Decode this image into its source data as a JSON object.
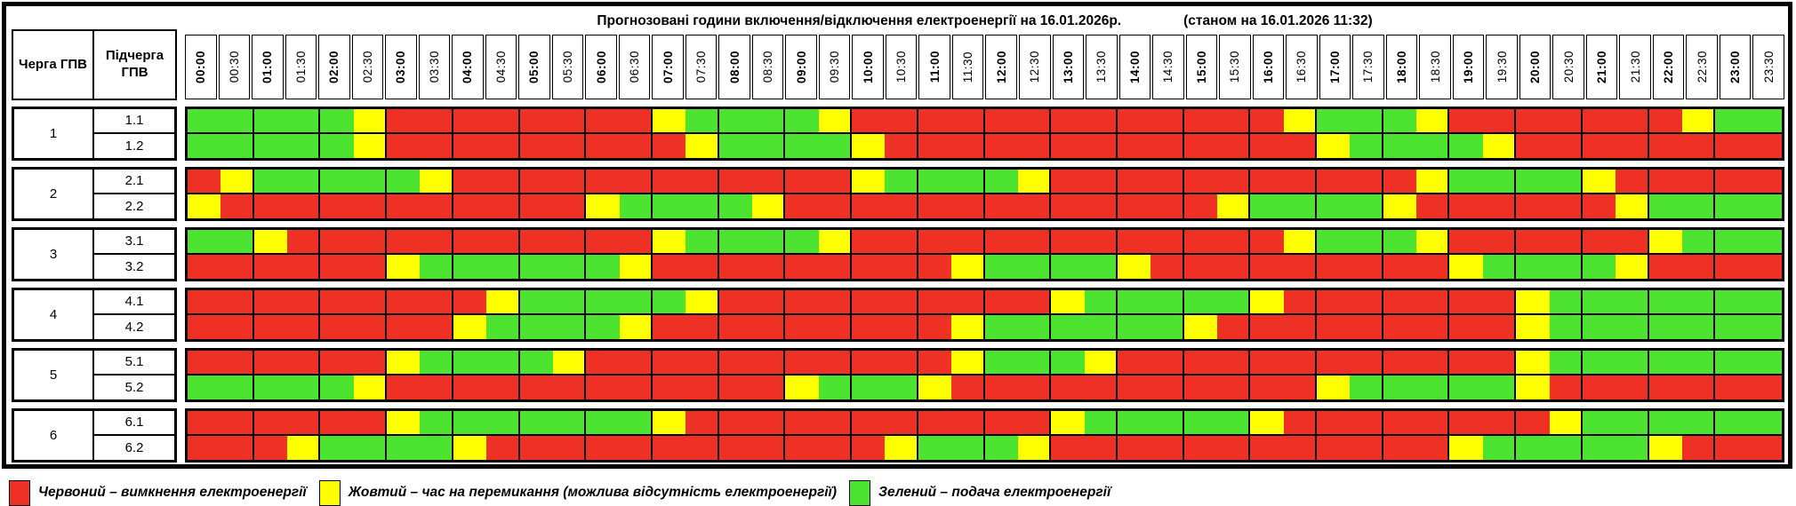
{
  "header": {
    "queue_label": "Черга ГПВ",
    "subqueue_label": "Підчерга ГПВ"
  },
  "chart_data": {
    "type": "heatmap",
    "title": "Прогнозовані години включення/відключення електроенергії на 16.01.2026р.",
    "status": "(станом на 16.01.2026 11:32)",
    "x_labels": [
      "00:00",
      "00:30",
      "01:00",
      "01:30",
      "02:00",
      "02:30",
      "03:00",
      "03:30",
      "04:00",
      "04:30",
      "05:00",
      "05:30",
      "06:00",
      "06:30",
      "07:00",
      "07:30",
      "08:00",
      "08:30",
      "09:00",
      "09:30",
      "10:00",
      "10:30",
      "11:00",
      "11:30",
      "12:00",
      "12:30",
      "13:00",
      "13:30",
      "14:00",
      "14:30",
      "15:00",
      "15:30",
      "16:00",
      "16:30",
      "17:00",
      "17:30",
      "18:00",
      "18:30",
      "19:00",
      "19:30",
      "20:00",
      "20:30",
      "21:00",
      "21:30",
      "22:00",
      "22:30",
      "23:00",
      "23:30"
    ],
    "value_colors": {
      "R": "#ee3124",
      "Y": "#feff00",
      "G": "#4ce431"
    },
    "value_meaning": {
      "R": "відключення",
      "Y": "перемикання",
      "G": "подача"
    },
    "groups": [
      {
        "queue": "1",
        "rows": [
          {
            "label": "1.1",
            "cells": "GGGGGYRRRRRRRRYGGGGYRRRRRRRRRRRRRYGGGYRRRRRRRYGG"
          },
          {
            "label": "1.2",
            "cells": "GGGGGYRRRRRRRRRYGGGGYRRRRRRRRRRRRRYGGGGYRRRRRRRR"
          }
        ]
      },
      {
        "queue": "2",
        "rows": [
          {
            "label": "2.1",
            "cells": "RYGGGGGYRRRRRRRRRRRRYGGGGYRRRRRRRRRRRYGGGGYRRRRR"
          },
          {
            "label": "2.2",
            "cells": "YRRRRRRRRRRRYGGGGYRRRRRRRRRRRRRYGGGGYRRRRRRYGGGG"
          }
        ]
      },
      {
        "queue": "3",
        "rows": [
          {
            "label": "3.1",
            "cells": "GGYRRRRRRRRRRRYGGGGYRRRRRRRRRRRRRYGGGYRRRRRRYGGG"
          },
          {
            "label": "3.2",
            "cells": "RRRRRRYGGGGGGYRRRRRRRRRYGGGGYRRRRRRRRRYGGGGYRRRR"
          }
        ]
      },
      {
        "queue": "4",
        "rows": [
          {
            "label": "4.1",
            "cells": "RRRRRRRRRYGGGGGYRRRRRRRRRRYGGGGGYRRRRRRRYGGGGGGG"
          },
          {
            "label": "4.2",
            "cells": "RRRRRRRRYGGGGYRRRRRRRRRYGGGGGGYRRRRRRRRRYGGGGGGG"
          }
        ]
      },
      {
        "queue": "5",
        "rows": [
          {
            "label": "5.1",
            "cells": "RRRRRRYGGGGYRRRRRRRRRRRYGGGYRRRRRRRRRRRRYGGGGGGG"
          },
          {
            "label": "5.2",
            "cells": "GGGGGYRRRRRRRRRRRRYGGGYRRRRRRRRRRRYGGGGGYRRRRRRR"
          }
        ]
      },
      {
        "queue": "6",
        "rows": [
          {
            "label": "6.1",
            "cells": "RRRRRRYGGGGGGGYRRRRRRRRRRRYGGGGGYRRRRRRRRYGGGGGG"
          },
          {
            "label": "6.2",
            "cells": "RRRYGGGGYRRRRRRRRRRRRYGGGYRRRRRRRRRRRRYGGGGGYRRR"
          }
        ]
      }
    ],
    "legend": [
      {
        "key": "R",
        "label": "Червоний – вимкнення електроенергії"
      },
      {
        "key": "Y",
        "label": "Жовтий – час на перемикання (можлива відсутність електроенергії)"
      },
      {
        "key": "G",
        "label": "Зелений – подача електроенергії"
      }
    ]
  }
}
